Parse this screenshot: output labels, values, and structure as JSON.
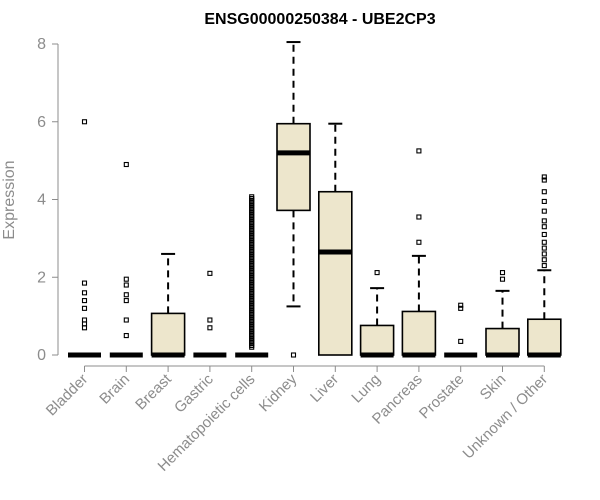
{
  "chart_data": {
    "type": "boxplot",
    "title": "ENSG00000250384 - UBE2CP3",
    "ylabel": "Expression",
    "xlabel": "",
    "ylim": [
      0,
      8
    ],
    "yticks": [
      0,
      2,
      4,
      6,
      8
    ],
    "categories": [
      "Bladder",
      "Brain",
      "Breast",
      "Gastric",
      "Hematopoietic cells",
      "Kidney",
      "Liver",
      "Lung",
      "Pancreas",
      "Prostate",
      "Skin",
      "Unknown / Other"
    ],
    "box_fill": "#ede6cc",
    "box_stroke": "#000000",
    "boxes": [
      {
        "category": "Bladder",
        "whisker_low": 0,
        "q1": 0,
        "median": 0,
        "q3": 0,
        "whisker_high": 0,
        "outliers": [
          0.7,
          0.8,
          0.9,
          1.2,
          1.4,
          1.6,
          1.85,
          6.0
        ]
      },
      {
        "category": "Brain",
        "whisker_low": 0,
        "q1": 0,
        "median": 0,
        "q3": 0,
        "whisker_high": 0,
        "outliers": [
          0.5,
          0.9,
          1.4,
          1.55,
          1.8,
          1.95,
          4.9
        ]
      },
      {
        "category": "Breast",
        "whisker_low": 0,
        "q1": 0,
        "median": 0,
        "q3": 1.07,
        "whisker_high": 2.6,
        "outliers": []
      },
      {
        "category": "Gastric",
        "whisker_low": 0,
        "q1": 0,
        "median": 0,
        "q3": 0,
        "whisker_high": 0,
        "outliers": [
          0.7,
          0.9,
          2.1
        ]
      },
      {
        "category": "Hematopoietic cells",
        "whisker_low": 0,
        "q1": 0,
        "median": 0,
        "q3": 0,
        "whisker_high": 0,
        "outliers_dense_range": [
          0.2,
          4.1
        ]
      },
      {
        "category": "Kidney",
        "whisker_low": 1.25,
        "q1": 3.72,
        "median": 5.2,
        "q3": 5.95,
        "whisker_high": 8.05,
        "outliers": [
          0
        ]
      },
      {
        "category": "Liver",
        "whisker_low": 0,
        "q1": 0,
        "median": 2.65,
        "q3": 4.2,
        "whisker_high": 5.95,
        "outliers": []
      },
      {
        "category": "Lung",
        "whisker_low": 0,
        "q1": 0,
        "median": 0,
        "q3": 0.76,
        "whisker_high": 1.72,
        "outliers": [
          2.12
        ]
      },
      {
        "category": "Pancreas",
        "whisker_low": 0,
        "q1": 0,
        "median": 0,
        "q3": 1.12,
        "whisker_high": 2.55,
        "outliers": [
          2.9,
          3.55,
          5.25
        ]
      },
      {
        "category": "Prostate",
        "whisker_low": 0,
        "q1": 0,
        "median": 0,
        "q3": 0,
        "whisker_high": 0,
        "outliers": [
          0.35,
          1.2,
          1.28
        ]
      },
      {
        "category": "Skin",
        "whisker_low": 0,
        "q1": 0,
        "median": 0,
        "q3": 0.68,
        "whisker_high": 1.65,
        "outliers": [
          1.95,
          2.12
        ]
      },
      {
        "category": "Unknown / Other",
        "whisker_low": 0,
        "q1": 0,
        "median": 0,
        "q3": 0.92,
        "whisker_high": 2.18,
        "outliers": [
          2.3,
          2.45,
          2.6,
          2.75,
          2.9,
          3.1,
          3.3,
          3.45,
          3.7,
          3.95,
          4.2,
          4.5,
          4.58
        ]
      }
    ],
    "grid": false,
    "legend": "none"
  }
}
